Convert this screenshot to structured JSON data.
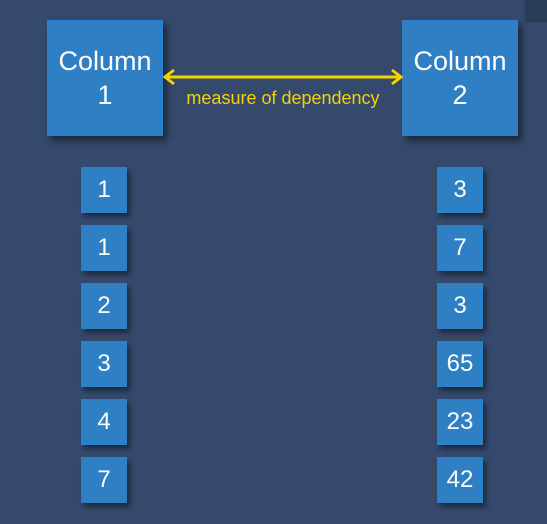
{
  "colors": {
    "background": "#34496c",
    "box": "#2f7fc4",
    "box_text": "#ffffff",
    "arrow": "#f5d200"
  },
  "column1": {
    "title_line1": "Column",
    "title_line2": "1",
    "values": [
      "1",
      "1",
      "2",
      "3",
      "4",
      "7"
    ]
  },
  "column2": {
    "title_line1": "Column",
    "title_line2": "2",
    "values": [
      "3",
      "7",
      "3",
      "65",
      "23",
      "42"
    ]
  },
  "relation": {
    "label": "measure of dependency",
    "arrow": "double-headed-arrow-icon"
  }
}
